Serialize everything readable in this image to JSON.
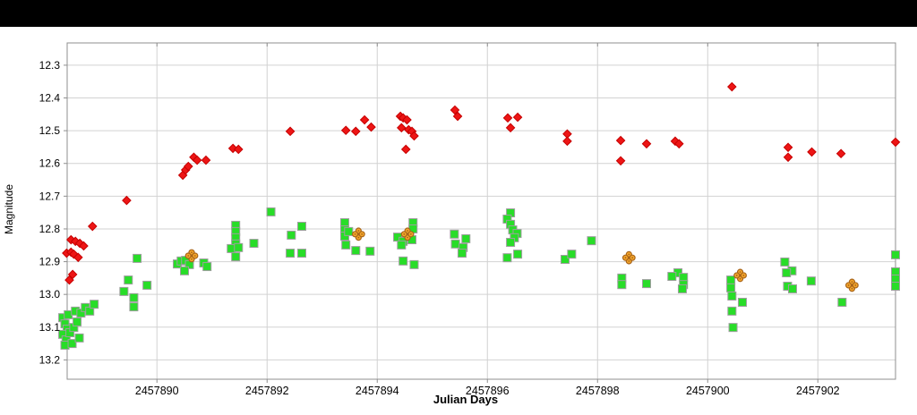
{
  "window": {
    "top_bar_color": "#000000",
    "background_color": "#ffffff"
  },
  "chart_data": {
    "type": "scatter",
    "title": "",
    "xlabel": "Julian Days",
    "ylabel": "Magnitude",
    "grid": true,
    "legend": "none",
    "x_axis": {
      "min": 2457888.37,
      "max": 2457903.41,
      "ticks": [
        2457890,
        2457892,
        2457894,
        2457896,
        2457898,
        2457900,
        2457902
      ]
    },
    "y_axis": {
      "min": 12.232,
      "max": 13.259,
      "inverted_magnitude_scale": true,
      "ticks": [
        12.3,
        12.4,
        12.5,
        12.6,
        12.7,
        12.8,
        12.9,
        13.0,
        13.1,
        13.2
      ]
    },
    "colors": {
      "grid": "#d2d2d2",
      "border": "#8f8f8f",
      "red_series": "#ed1515",
      "red_stroke": "#c60000",
      "green_series": "#28dd28",
      "green_stroke": "#9e9e9e",
      "orange_marker_fill": "#f5a62a",
      "orange_marker_stroke": "#a8651a"
    },
    "series": [
      {
        "name": "red-diamonds",
        "marker": "diamond",
        "points": [
          [
            2457888.44,
            12.833
          ],
          [
            2457888.52,
            12.838
          ],
          [
            2457888.6,
            12.844
          ],
          [
            2457888.67,
            12.852
          ],
          [
            2457888.36,
            12.874
          ],
          [
            2457888.44,
            12.871
          ],
          [
            2457888.49,
            12.877
          ],
          [
            2457888.57,
            12.887
          ],
          [
            2457888.47,
            12.939
          ],
          [
            2457888.41,
            12.956
          ],
          [
            2457888.83,
            12.792
          ],
          [
            2457889.45,
            12.713
          ],
          [
            2457890.47,
            12.636
          ],
          [
            2457890.52,
            12.62
          ],
          [
            2457890.57,
            12.609
          ],
          [
            2457890.67,
            12.581
          ],
          [
            2457890.73,
            12.59
          ],
          [
            2457890.89,
            12.59
          ],
          [
            2457891.38,
            12.554
          ],
          [
            2457891.48,
            12.557
          ],
          [
            2457892.42,
            12.502
          ],
          [
            2457893.43,
            12.499
          ],
          [
            2457893.61,
            12.502
          ],
          [
            2457893.77,
            12.467
          ],
          [
            2457893.89,
            12.489
          ],
          [
            2457894.42,
            12.456
          ],
          [
            2457894.47,
            12.461
          ],
          [
            2457894.54,
            12.467
          ],
          [
            2457894.44,
            12.491
          ],
          [
            2457894.57,
            12.497
          ],
          [
            2457894.63,
            12.502
          ],
          [
            2457894.67,
            12.516
          ],
          [
            2457894.52,
            12.557
          ],
          [
            2457895.41,
            12.437
          ],
          [
            2457895.46,
            12.456
          ],
          [
            2457896.37,
            12.461
          ],
          [
            2457896.55,
            12.459
          ],
          [
            2457896.42,
            12.491
          ],
          [
            2457897.45,
            12.51
          ],
          [
            2457897.45,
            12.532
          ],
          [
            2457898.42,
            12.53
          ],
          [
            2457898.42,
            12.592
          ],
          [
            2457898.89,
            12.54
          ],
          [
            2457899.41,
            12.532
          ],
          [
            2457899.48,
            12.54
          ],
          [
            2457900.44,
            12.366
          ],
          [
            2457901.46,
            12.551
          ],
          [
            2457901.46,
            12.581
          ],
          [
            2457901.89,
            12.565
          ],
          [
            2457902.42,
            12.57
          ],
          [
            2457903.41,
            12.535
          ]
        ]
      },
      {
        "name": "green-squares",
        "marker": "square",
        "points": [
          [
            2457888.29,
            13.071
          ],
          [
            2457888.33,
            13.09
          ],
          [
            2457888.37,
            13.106
          ],
          [
            2457888.29,
            13.122
          ],
          [
            2457888.35,
            13.139
          ],
          [
            2457888.42,
            13.117
          ],
          [
            2457888.49,
            13.101
          ],
          [
            2457888.55,
            13.084
          ],
          [
            2457888.33,
            13.155
          ],
          [
            2457888.46,
            13.15
          ],
          [
            2457888.59,
            13.133
          ],
          [
            2457888.39,
            13.062
          ],
          [
            2457888.52,
            13.051
          ],
          [
            2457888.62,
            13.057
          ],
          [
            2457888.7,
            13.04
          ],
          [
            2457888.78,
            13.051
          ],
          [
            2457888.86,
            13.03
          ],
          [
            2457889.4,
            12.991
          ],
          [
            2457889.48,
            12.956
          ],
          [
            2457889.58,
            13.01
          ],
          [
            2457889.58,
            13.038
          ],
          [
            2457889.64,
            12.89
          ],
          [
            2457889.82,
            12.972
          ],
          [
            2457890.37,
            12.907
          ],
          [
            2457890.44,
            12.898
          ],
          [
            2457890.52,
            12.896
          ],
          [
            2457890.59,
            12.909
          ],
          [
            2457890.5,
            12.928
          ],
          [
            2457890.85,
            12.904
          ],
          [
            2457890.91,
            12.915
          ],
          [
            2457891.43,
            12.789
          ],
          [
            2457891.43,
            12.808
          ],
          [
            2457891.43,
            12.827
          ],
          [
            2457891.43,
            12.846
          ],
          [
            2457891.35,
            12.86
          ],
          [
            2457891.48,
            12.857
          ],
          [
            2457891.76,
            12.844
          ],
          [
            2457891.43,
            12.885
          ],
          [
            2457892.07,
            12.748
          ],
          [
            2457892.44,
            12.819
          ],
          [
            2457892.63,
            12.792
          ],
          [
            2457892.42,
            12.874
          ],
          [
            2457892.63,
            12.874
          ],
          [
            2457893.41,
            12.781
          ],
          [
            2457893.41,
            12.803
          ],
          [
            2457893.41,
            12.822
          ],
          [
            2457893.48,
            12.808
          ],
          [
            2457893.43,
            12.849
          ],
          [
            2457893.61,
            12.866
          ],
          [
            2457893.87,
            12.868
          ],
          [
            2457894.37,
            12.825
          ],
          [
            2457894.47,
            12.838
          ],
          [
            2457894.63,
            12.833
          ],
          [
            2457894.44,
            12.849
          ],
          [
            2457894.65,
            12.781
          ],
          [
            2457894.65,
            12.8
          ],
          [
            2457894.47,
            12.898
          ],
          [
            2457894.67,
            12.909
          ],
          [
            2457895.4,
            12.816
          ],
          [
            2457895.61,
            12.83
          ],
          [
            2457895.42,
            12.846
          ],
          [
            2457895.56,
            12.857
          ],
          [
            2457895.54,
            12.874
          ],
          [
            2457896.42,
            12.751
          ],
          [
            2457896.36,
            12.77
          ],
          [
            2457896.42,
            12.786
          ],
          [
            2457896.46,
            12.803
          ],
          [
            2457896.54,
            12.814
          ],
          [
            2457896.49,
            12.827
          ],
          [
            2457896.42,
            12.841
          ],
          [
            2457896.55,
            12.877
          ],
          [
            2457896.36,
            12.888
          ],
          [
            2457897.41,
            12.893
          ],
          [
            2457897.53,
            12.877
          ],
          [
            2457897.89,
            12.836
          ],
          [
            2457898.44,
            12.95
          ],
          [
            2457898.44,
            12.97
          ],
          [
            2457898.89,
            12.967
          ],
          [
            2457899.46,
            12.934
          ],
          [
            2457899.35,
            12.945
          ],
          [
            2457899.56,
            12.948
          ],
          [
            2457899.56,
            12.97
          ],
          [
            2457899.54,
            12.983
          ],
          [
            2457900.42,
            12.956
          ],
          [
            2457900.42,
            12.98
          ],
          [
            2457900.44,
            13.005
          ],
          [
            2457900.63,
            13.024
          ],
          [
            2457900.44,
            13.051
          ],
          [
            2457900.46,
            13.101
          ],
          [
            2457901.4,
            12.901
          ],
          [
            2457901.53,
            12.928
          ],
          [
            2457901.43,
            12.934
          ],
          [
            2457901.45,
            12.975
          ],
          [
            2457901.54,
            12.983
          ],
          [
            2457901.88,
            12.959
          ],
          [
            2457902.44,
            13.024
          ],
          [
            2457903.41,
            12.879
          ],
          [
            2457903.41,
            12.931
          ],
          [
            2457903.41,
            12.953
          ],
          [
            2457903.41,
            12.975
          ]
        ]
      },
      {
        "name": "orange-cluster-markers",
        "marker": "circle-cluster",
        "points": [
          [
            2457890.63,
            12.882
          ],
          [
            2457893.66,
            12.816
          ],
          [
            2457894.55,
            12.816
          ],
          [
            2457898.57,
            12.888
          ],
          [
            2457900.59,
            12.942
          ],
          [
            2457902.62,
            12.972
          ]
        ]
      }
    ]
  }
}
